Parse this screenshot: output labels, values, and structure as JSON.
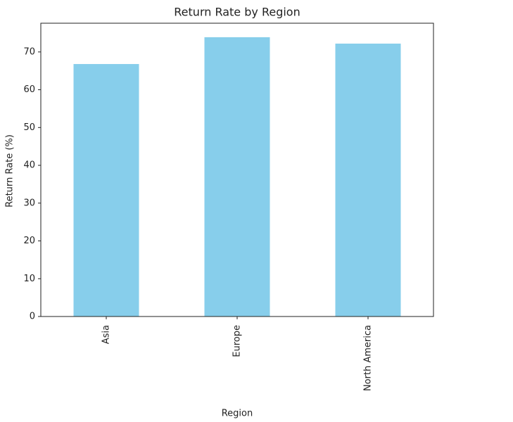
{
  "chart_data": {
    "type": "bar",
    "title": "Return Rate by Region",
    "xlabel": "Region",
    "ylabel": "Return Rate (%)",
    "categories": [
      "Asia",
      "Europe",
      "North America"
    ],
    "values": [
      66.8,
      73.9,
      72.2
    ],
    "color": "#87ceeb",
    "ylim": [
      0,
      77.6
    ],
    "yticks": [
      0,
      10,
      20,
      30,
      40,
      50,
      60,
      70
    ],
    "grid": false
  }
}
